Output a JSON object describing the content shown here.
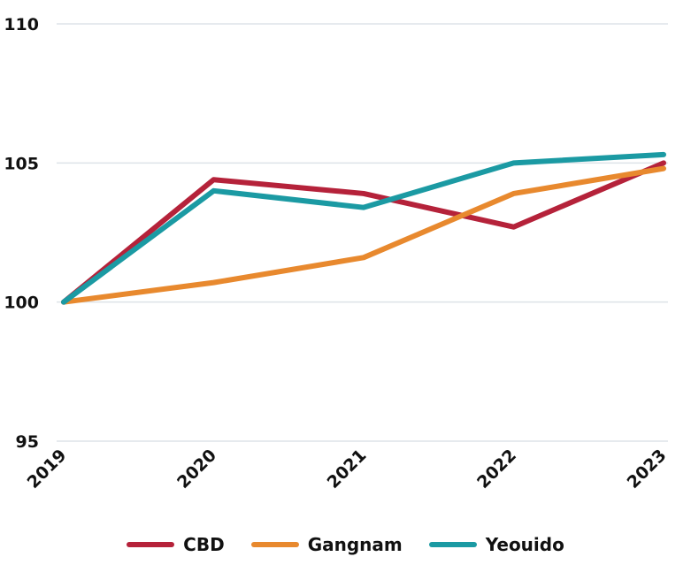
{
  "chart_data": {
    "type": "line",
    "title": "",
    "xlabel": "",
    "ylabel": "",
    "x": [
      "2019",
      "2020",
      "2021",
      "2022",
      "2023"
    ],
    "ylim": [
      95,
      110
    ],
    "yticks": [
      "95",
      "100",
      "105",
      "110"
    ],
    "grid": true,
    "legend_position": "bottom",
    "series": [
      {
        "name": "CBD",
        "color": "#b5223a",
        "values": [
          100,
          104.4,
          103.9,
          102.7,
          105.0
        ]
      },
      {
        "name": "Gangnam",
        "color": "#e8892e",
        "values": [
          100,
          100.7,
          101.6,
          103.9,
          104.8
        ]
      },
      {
        "name": "Yeouido",
        "color": "#1b9aa3",
        "values": [
          100,
          104.0,
          103.4,
          105.0,
          105.3
        ]
      }
    ]
  }
}
